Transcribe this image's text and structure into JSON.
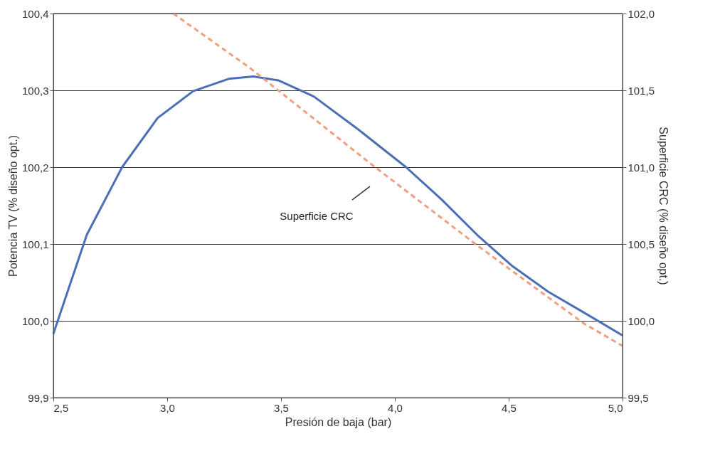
{
  "chart_data": {
    "type": "line",
    "xlabel": "Presión de baja (bar)",
    "ylabel": "Potencia TV (% diseño opt.)",
    "y2label": "Superficie CRC (% diseño opt.)",
    "series": [
      {
        "color": "#4a6fb5",
        "x": [
          2.5,
          2.584,
          2.647,
          2.802,
          2.958,
          3.114,
          3.27,
          3.379,
          3.488,
          3.644,
          3.831,
          4.049,
          4.205,
          4.361,
          4.517,
          4.673,
          4.829,
          5.0
        ],
        "values": [
          99.983,
          100.057,
          100.112,
          100.2,
          100.264,
          100.299,
          100.315,
          100.318,
          100.313,
          100.292,
          100.251,
          100.2,
          100.158,
          100.112,
          100.071,
          100.038,
          100.011,
          99.981
        ],
        "line_style": "solid"
      },
      {
        "color": "#f0a080",
        "axis": "y2",
        "x": [
          3.027,
          3.364,
          3.894,
          4.361,
          4.829,
          5.0
        ],
        "values": [
          102.0,
          101.645,
          101.022,
          100.492,
          99.984,
          99.837
        ],
        "line_style": "dashed"
      }
    ],
    "xlim": [
      2.5,
      5.0
    ],
    "xticks": [
      {
        "value": 2.5,
        "label": "2,5"
      },
      {
        "value": 3.0,
        "label": "3,0"
      },
      {
        "value": 3.5,
        "label": "3,5"
      },
      {
        "value": 4.0,
        "label": "4,0"
      },
      {
        "value": 4.5,
        "label": "4,5"
      },
      {
        "value": 5.0,
        "label": "5,0"
      }
    ],
    "ylim": [
      99.9,
      100.4
    ],
    "yticks": [
      {
        "value": 99.9,
        "label": "99,9"
      },
      {
        "value": 100.0,
        "label": "100,0"
      },
      {
        "value": 100.1,
        "label": "100,1"
      },
      {
        "value": 100.2,
        "label": "100,2"
      },
      {
        "value": 100.3,
        "label": "100,3"
      },
      {
        "value": 100.4,
        "label": "100,4"
      }
    ],
    "y2lim": [
      99.5,
      102.0
    ],
    "y2ticks": [
      {
        "value": 99.5,
        "label": "99,5"
      },
      {
        "value": 100.0,
        "label": "100,0"
      },
      {
        "value": 100.5,
        "label": "100,5"
      },
      {
        "value": 101.0,
        "label": "101,0"
      },
      {
        "value": 101.5,
        "label": "101,5"
      },
      {
        "value": 102.0,
        "label": "102,0"
      }
    ],
    "grid": "y",
    "marker": "none",
    "annotations": [
      "Superficie CRC"
    ]
  }
}
